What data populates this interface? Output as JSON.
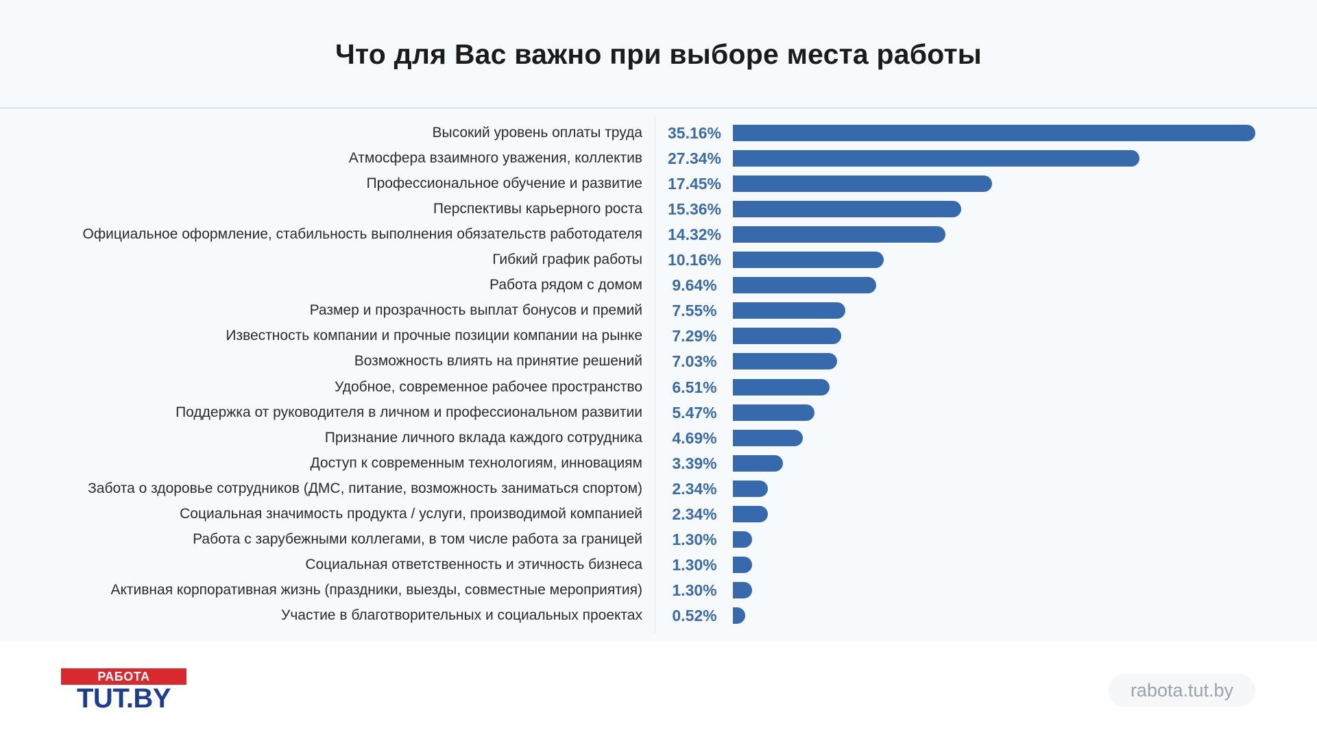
{
  "header": {
    "title": "Что для Вас важно при выборе места работы"
  },
  "chart_data": {
    "type": "bar",
    "orientation": "horizontal",
    "title": "Что для Вас важно при выборе места работы",
    "bar_color": "#3769ad",
    "value_color": "#3a6aa8",
    "categories": [
      "Высокий уровень оплаты труда",
      "Атмосфера взаимного уважения, коллектив",
      "Профессиональное обучение и развитие",
      "Перспективы карьерного роста",
      "Официальное оформление, стабильность выполнения обязательств работодателя",
      "Гибкий график работы",
      "Работа рядом с домом",
      "Размер и прозрачность выплат бонусов и премий",
      "Известность компании и прочные позиции компании на рынке",
      "Возможность влиять на принятие решений",
      "Удобное, современное рабочее пространство",
      "Поддержка от руководителя в личном и профессиональном развитии",
      "Признание личного вклада каждого сотрудника",
      "Доступ к современным технологиям, инновациям",
      "Забота о здоровье сотрудников (ДМС, питание, возможность заниматься спортом)",
      "Социальная значимость продукта / услуги, производимой компанией",
      "Работа с зарубежными коллегами, в том числе работа за границей",
      "Социальная ответственность и этичность бизнеса",
      "Активная корпоративная жизнь (праздники, выезды, совместные мероприятия)",
      "Участие в благотворительных и социальных проектах"
    ],
    "values": [
      35.16,
      27.34,
      17.45,
      15.36,
      14.32,
      10.16,
      9.64,
      7.55,
      7.29,
      7.03,
      6.51,
      5.47,
      4.69,
      3.39,
      2.34,
      2.34,
      1.3,
      1.3,
      1.3,
      0.52
    ],
    "value_labels": [
      "35.16%",
      "27.34%",
      "17.45%",
      "15.36%",
      "14.32%",
      "10.16%",
      "9.64%",
      "7.55%",
      "7.29%",
      "7.03%",
      "6.51%",
      "5.47%",
      "4.69%",
      "3.39%",
      "2.34%",
      "2.34%",
      "1.30%",
      "1.30%",
      "1.30%",
      "0.52%"
    ]
  },
  "footer": {
    "logo_top": "РАБОТА",
    "logo_bottom": "TUT.BY",
    "site": "rabota.tut.by",
    "logo_colors": {
      "red": "#d8292f",
      "blue": "#1d3d8f"
    }
  }
}
